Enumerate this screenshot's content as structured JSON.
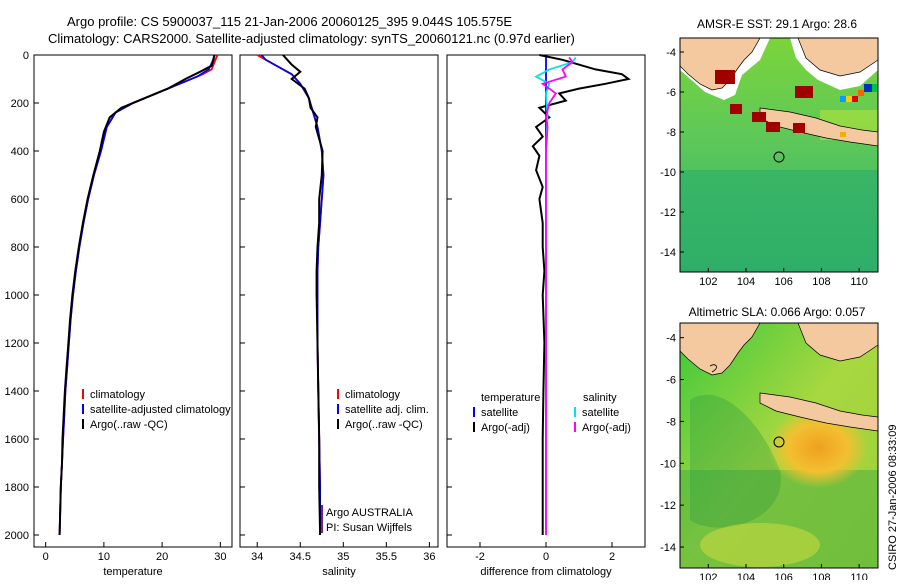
{
  "header": {
    "line1": "Argo profile: CS 5900037_115 21-Jan-2006 20060125_395 9.044S 105.575E",
    "line2": "Climatology: CARS2000. Satellite-adjusted climatology: synTS_20060121.nc (0.97d earlier)"
  },
  "side_label": "CSIRO 27-Jan-2006 08:33:09",
  "colors": {
    "red": "#ff0000",
    "blue": "#0000ff",
    "black": "#000000",
    "cyan": "#00e5ee",
    "magenta": "#ff00ff",
    "land": "#f4c9a0",
    "ocean_green": "#33cc33",
    "warm": "#f0a020"
  },
  "chart_data": [
    {
      "id": "temperature",
      "type": "line",
      "xlabel": "temperature",
      "xlim": [
        -2,
        32
      ],
      "ylim": [
        2050,
        0
      ],
      "xticks": [
        0,
        10,
        20,
        30
      ],
      "yticks": [
        0,
        200,
        400,
        600,
        800,
        1000,
        1200,
        1400,
        1600,
        1800,
        2000
      ],
      "series": [
        {
          "name": "climatology",
          "color": "#ff0000",
          "points": [
            [
              29.5,
              0
            ],
            [
              29.0,
              30
            ],
            [
              28.5,
              60
            ],
            [
              27,
              80
            ],
            [
              24,
              110
            ],
            [
              20,
              150
            ],
            [
              15,
              200
            ],
            [
              12,
              240
            ],
            [
              10.5,
              300
            ],
            [
              9.5,
              400
            ],
            [
              8.3,
              500
            ],
            [
              7.3,
              600
            ],
            [
              6.5,
              700
            ],
            [
              5.8,
              800
            ],
            [
              5.2,
              900
            ],
            [
              4.7,
              1000
            ],
            [
              4.3,
              1100
            ],
            [
              4.0,
              1200
            ],
            [
              3.7,
              1300
            ],
            [
              3.4,
              1400
            ],
            [
              3.2,
              1500
            ],
            [
              3.0,
              1600
            ],
            [
              2.8,
              1700
            ],
            [
              2.6,
              1800
            ],
            [
              2.5,
              1900
            ],
            [
              2.4,
              2000
            ]
          ]
        },
        {
          "name": "satellite-adjusted climatology",
          "color": "#0000ff",
          "points": [
            [
              29.0,
              0
            ],
            [
              28.6,
              30
            ],
            [
              28.0,
              60
            ],
            [
              26,
              90
            ],
            [
              23,
              120
            ],
            [
              19,
              160
            ],
            [
              15,
              200
            ],
            [
              12,
              240
            ],
            [
              10.5,
              300
            ],
            [
              9.5,
              400
            ],
            [
              8.3,
              500
            ],
            [
              7.3,
              600
            ],
            [
              6.5,
              700
            ],
            [
              5.8,
              800
            ],
            [
              5.2,
              900
            ],
            [
              4.7,
              1000
            ],
            [
              4.3,
              1100
            ],
            [
              4.0,
              1200
            ],
            [
              3.7,
              1300
            ],
            [
              3.4,
              1400
            ],
            [
              3.2,
              1500
            ],
            [
              3.0,
              1600
            ],
            [
              2.8,
              1700
            ],
            [
              2.6,
              1800
            ],
            [
              2.5,
              1900
            ],
            [
              2.4,
              2000
            ]
          ]
        },
        {
          "name": "Argo(..raw -QC)",
          "color": "#000000",
          "points": [
            [
              29.0,
              0
            ],
            [
              28.8,
              20
            ],
            [
              28.5,
              45
            ],
            [
              26.5,
              70
            ],
            [
              24,
              100
            ],
            [
              21,
              140
            ],
            [
              17,
              180
            ],
            [
              13,
              220
            ],
            [
              11,
              260
            ],
            [
              10,
              320
            ],
            [
              9.3,
              400
            ],
            [
              8.2,
              500
            ],
            [
              7.2,
              600
            ],
            [
              6.4,
              700
            ],
            [
              5.7,
              800
            ],
            [
              5.1,
              900
            ],
            [
              4.6,
              1000
            ],
            [
              4.2,
              1100
            ],
            [
              3.9,
              1200
            ],
            [
              3.6,
              1300
            ],
            [
              3.3,
              1400
            ],
            [
              3.1,
              1500
            ],
            [
              2.9,
              1600
            ],
            [
              2.8,
              1700
            ],
            [
              2.6,
              1800
            ],
            [
              2.5,
              1900
            ],
            [
              2.4,
              2000
            ]
          ]
        }
      ],
      "legend": [
        "climatology",
        "satellite-adjusted climatology",
        "Argo(..raw -QC)"
      ]
    },
    {
      "id": "salinity",
      "type": "line",
      "xlabel": "salinity",
      "xlim": [
        33.8,
        36.1
      ],
      "ylim": [
        2050,
        0
      ],
      "xticks": [
        34,
        34.5,
        35,
        35.5,
        36
      ],
      "xticklabels": [
        "34",
        "34.5",
        "35",
        "35.5",
        "36"
      ],
      "series": [
        {
          "name": "climatology",
          "color": "#ff0000",
          "points": [
            [
              34.0,
              0
            ],
            [
              34.1,
              20
            ],
            [
              34.2,
              40
            ],
            [
              34.4,
              80
            ],
            [
              34.5,
              120
            ],
            [
              34.6,
              180
            ],
            [
              34.65,
              240
            ],
            [
              34.7,
              300
            ],
            [
              34.75,
              400
            ],
            [
              34.77,
              500
            ],
            [
              34.75,
              600
            ],
            [
              34.73,
              700
            ],
            [
              34.71,
              800
            ],
            [
              34.7,
              900
            ],
            [
              34.7,
              1000
            ],
            [
              34.7,
              1200
            ],
            [
              34.71,
              1400
            ],
            [
              34.72,
              1600
            ],
            [
              34.73,
              1800
            ],
            [
              34.73,
              2000
            ]
          ]
        },
        {
          "name": "satellite adj. clim.",
          "color": "#0000ff",
          "points": [
            [
              34.05,
              0
            ],
            [
              34.1,
              20
            ],
            [
              34.2,
              40
            ],
            [
              34.4,
              80
            ],
            [
              34.5,
              120
            ],
            [
              34.6,
              180
            ],
            [
              34.65,
              240
            ],
            [
              34.7,
              300
            ],
            [
              34.75,
              400
            ],
            [
              34.77,
              500
            ],
            [
              34.75,
              600
            ],
            [
              34.73,
              700
            ],
            [
              34.71,
              800
            ],
            [
              34.7,
              900
            ],
            [
              34.7,
              1000
            ],
            [
              34.7,
              1200
            ],
            [
              34.71,
              1400
            ],
            [
              34.72,
              1600
            ],
            [
              34.73,
              1800
            ],
            [
              34.73,
              2000
            ]
          ]
        },
        {
          "name": "Argo(..raw -QC)",
          "color": "#000000",
          "points": [
            [
              34.3,
              0
            ],
            [
              34.35,
              20
            ],
            [
              34.4,
              40
            ],
            [
              34.5,
              70
            ],
            [
              34.4,
              100
            ],
            [
              34.55,
              140
            ],
            [
              34.6,
              180
            ],
            [
              34.62,
              220
            ],
            [
              34.7,
              260
            ],
            [
              34.68,
              300
            ],
            [
              34.76,
              400
            ],
            [
              34.75,
              500
            ],
            [
              34.72,
              600
            ],
            [
              34.72,
              700
            ],
            [
              34.7,
              800
            ],
            [
              34.69,
              900
            ],
            [
              34.69,
              1000
            ],
            [
              34.7,
              1200
            ],
            [
              34.71,
              1400
            ],
            [
              34.72,
              1600
            ],
            [
              34.72,
              1800
            ],
            [
              34.73,
              2000
            ]
          ]
        }
      ],
      "legend": [
        "climatology",
        "satellite adj. clim.",
        "Argo(..raw -QC)"
      ],
      "credit": [
        "Argo AUSTRALIA",
        "PI: Susan Wijffels"
      ]
    },
    {
      "id": "difference",
      "type": "line",
      "xlabel": "difference from climatology",
      "xlim": [
        -3,
        3
      ],
      "ylim": [
        2050,
        0
      ],
      "xticks": [
        -2,
        0,
        2
      ],
      "series": [
        {
          "name": "temperature satellite",
          "color": "#0000ff",
          "points": [
            [
              0,
              0
            ],
            [
              0,
              2000
            ]
          ]
        },
        {
          "name": "temperature Argo(-adj)",
          "color": "#000000",
          "points": [
            [
              -0.2,
              0
            ],
            [
              0.5,
              20
            ],
            [
              1.5,
              60
            ],
            [
              2.3,
              80
            ],
            [
              2.5,
              100
            ],
            [
              1.8,
              120
            ],
            [
              1.0,
              140
            ],
            [
              0.4,
              160
            ],
            [
              0.6,
              190
            ],
            [
              -0.2,
              220
            ],
            [
              0.1,
              260
            ],
            [
              -0.3,
              300
            ],
            [
              -0.1,
              340
            ],
            [
              -0.4,
              380
            ],
            [
              -0.2,
              420
            ],
            [
              -0.3,
              480
            ],
            [
              -0.1,
              550
            ],
            [
              -0.2,
              600
            ],
            [
              -0.1,
              700
            ],
            [
              -0.1,
              800
            ],
            [
              -0.05,
              900
            ],
            [
              -0.1,
              1000
            ],
            [
              -0.05,
              1200
            ],
            [
              -0.08,
              1400
            ],
            [
              -0.1,
              1600
            ],
            [
              -0.1,
              1800
            ],
            [
              -0.1,
              2000
            ]
          ]
        },
        {
          "name": "salinity satellite",
          "color": "#00e5ee",
          "points": [
            [
              0.9,
              10
            ],
            [
              0.8,
              30
            ],
            [
              0.1,
              60
            ],
            [
              -0.3,
              90
            ],
            [
              0.1,
              120
            ],
            [
              0.0,
              160
            ],
            [
              0.05,
              250
            ],
            [
              0.0,
              400
            ],
            [
              0.0,
              800
            ],
            [
              0.0,
              1200
            ],
            [
              0.0,
              2000
            ]
          ]
        },
        {
          "name": "salinity Argo(-adj)",
          "color": "#ff00ff",
          "points": [
            [
              0.7,
              10
            ],
            [
              0.8,
              30
            ],
            [
              0.5,
              60
            ],
            [
              0.6,
              90
            ],
            [
              -0.1,
              120
            ],
            [
              0.3,
              160
            ],
            [
              0.1,
              200
            ],
            [
              0.0,
              260
            ],
            [
              0.05,
              300
            ],
            [
              0.0,
              400
            ],
            [
              0.0,
              800
            ],
            [
              0.0,
              1200
            ],
            [
              0.0,
              2000
            ]
          ]
        }
      ],
      "legend_headers": [
        "temperature",
        "salinity"
      ],
      "legend": [
        "satellite",
        "Argo(-adj)",
        "satellite",
        "Argo(-adj)"
      ]
    }
  ],
  "maps": [
    {
      "id": "sst-map",
      "title": "AMSR-E SST: 29.1  Argo: 28.6",
      "xticks": [
        102,
        104,
        106,
        108,
        110
      ],
      "yticks": [
        -4,
        -6,
        -8,
        -10,
        -12,
        -14
      ],
      "xlim": [
        100.5,
        111
      ],
      "ylim": [
        -3.3,
        -15
      ],
      "float_position": [
        105.575,
        -9.044
      ]
    },
    {
      "id": "sla-map",
      "title": "Altimetric SLA: 0.066  Argo: 0.057",
      "xticks": [
        102,
        104,
        106,
        108,
        110
      ],
      "yticks": [
        -4,
        -6,
        -8,
        -10,
        -12,
        -14
      ],
      "xlim": [
        100.5,
        111
      ],
      "ylim": [
        -3.3,
        -15
      ],
      "float_position": [
        105.575,
        -9.044
      ]
    }
  ]
}
